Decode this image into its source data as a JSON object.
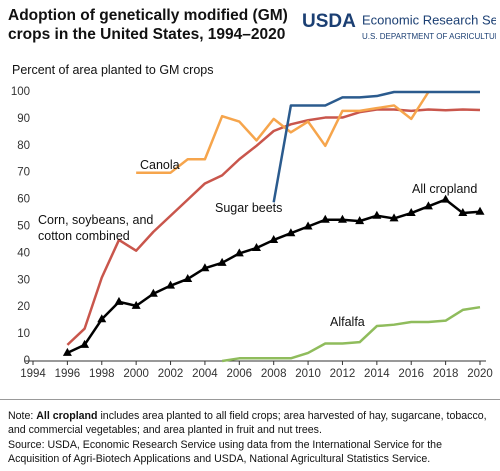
{
  "header": {
    "agency": "USDA",
    "service": "Economic Research Service",
    "department": "U.S. DEPARTMENT OF AGRICULTURE"
  },
  "chart_data": {
    "type": "line",
    "title": "Adoption of genetically modified (GM) crops in the United States, 1994–2020",
    "y_label": "Percent of area planted to GM crops",
    "x": [
      1994,
      1995,
      1996,
      1997,
      1998,
      1999,
      2000,
      2001,
      2002,
      2003,
      2004,
      2005,
      2006,
      2007,
      2008,
      2009,
      2010,
      2011,
      2012,
      2013,
      2014,
      2015,
      2016,
      2017,
      2018,
      2019,
      2020
    ],
    "xlim": [
      1994,
      2020
    ],
    "xticks": [
      1994,
      1996,
      1998,
      2000,
      2002,
      2004,
      2006,
      2008,
      2010,
      2012,
      2014,
      2016,
      2018,
      2020
    ],
    "ylim": [
      0,
      100
    ],
    "yticks": [
      0,
      10,
      20,
      30,
      40,
      50,
      60,
      70,
      80,
      90,
      100
    ],
    "grid": false,
    "series": [
      {
        "name": "Corn, soybeans, and cotton combined",
        "color": "#c9564c",
        "values": [
          null,
          null,
          6,
          12,
          31,
          45,
          41,
          48,
          54,
          60,
          66,
          69,
          75,
          80,
          85.5,
          88,
          89.5,
          90.5,
          90.5,
          92.5,
          93.5,
          93.5,
          93,
          93.5,
          93.2,
          93.5,
          93.3
        ]
      },
      {
        "name": "Canola",
        "color": "#f6a54c",
        "values": [
          null,
          null,
          null,
          null,
          null,
          null,
          70,
          70,
          70,
          75,
          75,
          91,
          89,
          82,
          90,
          85,
          89,
          80,
          93,
          93,
          94,
          95,
          90,
          100,
          null,
          null,
          null
        ]
      },
      {
        "name": "Sugar beets",
        "color": "#2b5b8e",
        "values": [
          null,
          null,
          null,
          null,
          null,
          null,
          null,
          null,
          null,
          null,
          null,
          null,
          null,
          null,
          59,
          95,
          95,
          95,
          98,
          98,
          98.5,
          100,
          100,
          100,
          100,
          100,
          100
        ]
      },
      {
        "name": "All cropland",
        "color": "#000000",
        "marker": "triangle",
        "values": [
          null,
          null,
          3,
          6,
          15.5,
          22,
          20.5,
          25,
          28,
          30.5,
          34.5,
          36.5,
          40,
          42,
          45,
          47.5,
          50,
          52.5,
          52.5,
          52,
          54,
          53,
          55,
          57.5,
          60,
          55,
          55.5
        ]
      },
      {
        "name": "Alfalfa",
        "color": "#8fbc5c",
        "values": [
          null,
          null,
          null,
          null,
          null,
          null,
          null,
          null,
          null,
          null,
          null,
          0,
          1,
          1,
          1,
          1,
          3,
          6.5,
          6.5,
          7,
          13,
          13.5,
          14.5,
          14.5,
          15,
          19,
          20
        ]
      }
    ]
  },
  "footer": {
    "note_label": "Note:",
    "note_term": "All cropland",
    "note_text": "includes area planted to all field crops; area harvested of hay, sugarcane, tobacco, and commercial vegetables; and area planted in fruit and nut trees.",
    "source": "Source: USDA, Economic Research Service using data from the International Service for the Acquisition of Agri-Biotech Applications and USDA, National Agricultural Statistics Service."
  }
}
